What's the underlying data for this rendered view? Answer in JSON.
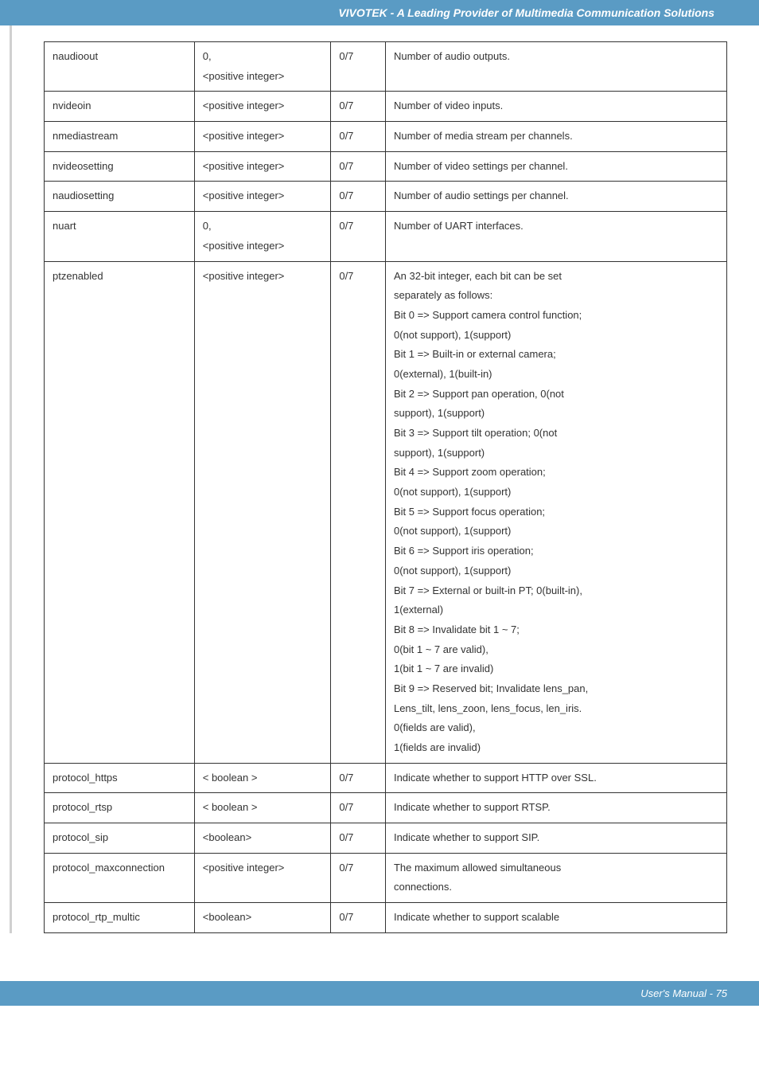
{
  "header": {
    "title": "VIVOTEK - A Leading Provider of Multimedia Communication Solutions"
  },
  "table": {
    "columns": [
      "param",
      "value",
      "code",
      "desc"
    ],
    "rows": [
      {
        "param": "naudioout",
        "value": "0,\n<positive integer>",
        "code": "0/7",
        "desc": [
          "Number of audio outputs."
        ]
      },
      {
        "param": "nvideoin",
        "value": "<positive integer>",
        "code": "0/7",
        "desc": [
          "Number of video inputs."
        ]
      },
      {
        "param": "nmediastream",
        "value": "<positive integer>",
        "code": "0/7",
        "desc": [
          "Number of media stream per channels."
        ]
      },
      {
        "param": "nvideosetting",
        "value": "<positive integer>",
        "code": "0/7",
        "desc": [
          "Number of video settings per channel."
        ]
      },
      {
        "param": "naudiosetting",
        "value": "<positive integer>",
        "code": "0/7",
        "desc": [
          "Number of audio settings per channel."
        ]
      },
      {
        "param": "nuart",
        "value": "0,\n<positive integer>",
        "code": "0/7",
        "desc": [
          "Number of UART interfaces."
        ]
      },
      {
        "param": "ptzenabled",
        "value": "<positive integer>",
        "code": "0/7",
        "desc": [
          "An 32-bit integer, each bit can be set",
          "separately as follows:",
          "Bit 0 => Support camera control function;",
          "0(not support), 1(support)",
          "Bit 1 => Built-in or external camera;",
          "0(external), 1(built-in)",
          "Bit 2 => Support pan operation, 0(not",
          "support), 1(support)",
          "Bit 3 => Support tilt operation; 0(not",
          "support), 1(support)",
          "Bit 4 => Support zoom operation;",
          "0(not support), 1(support)",
          "Bit 5 => Support focus operation;",
          "0(not support), 1(support)",
          "Bit 6 => Support iris operation;",
          "0(not support), 1(support)",
          "Bit 7 => External or built-in PT; 0(built-in),",
          "1(external)",
          "Bit 8 => Invalidate bit 1 ~ 7;",
          "0(bit 1 ~ 7 are valid),",
          "1(bit 1 ~ 7 are invalid)",
          "Bit 9 => Reserved bit; Invalidate lens_pan,",
          "Lens_tilt, lens_zoon, lens_focus, len_iris.",
          "0(fields are valid),",
          "1(fields are invalid)"
        ]
      },
      {
        "param": "protocol_https",
        "value": "< boolean >",
        "code": "0/7",
        "desc": [
          "Indicate whether to support HTTP over SSL."
        ]
      },
      {
        "param": "protocol_rtsp",
        "value": "< boolean >",
        "code": "0/7",
        "desc": [
          "Indicate whether to support RTSP."
        ]
      },
      {
        "param": "protocol_sip",
        "value": "<boolean>",
        "code": "0/7",
        "desc": [
          "Indicate whether to support SIP."
        ]
      },
      {
        "param": "protocol_maxconnection",
        "value": "<positive integer>",
        "code": "0/7",
        "desc": [
          "The maximum allowed simultaneous",
          "connections."
        ]
      },
      {
        "param": "protocol_rtp_multic",
        "value": "<boolean>",
        "code": "0/7",
        "desc": [
          "Indicate whether to support scalable"
        ]
      }
    ]
  },
  "footer": {
    "text": "User's Manual - 75"
  },
  "style": {
    "header_bg": "#5a9bc4",
    "header_text_color": "#ffffff",
    "body_text_color": "#333333",
    "border_color": "#333333",
    "font_size_table": 13,
    "font_size_header": 14
  }
}
